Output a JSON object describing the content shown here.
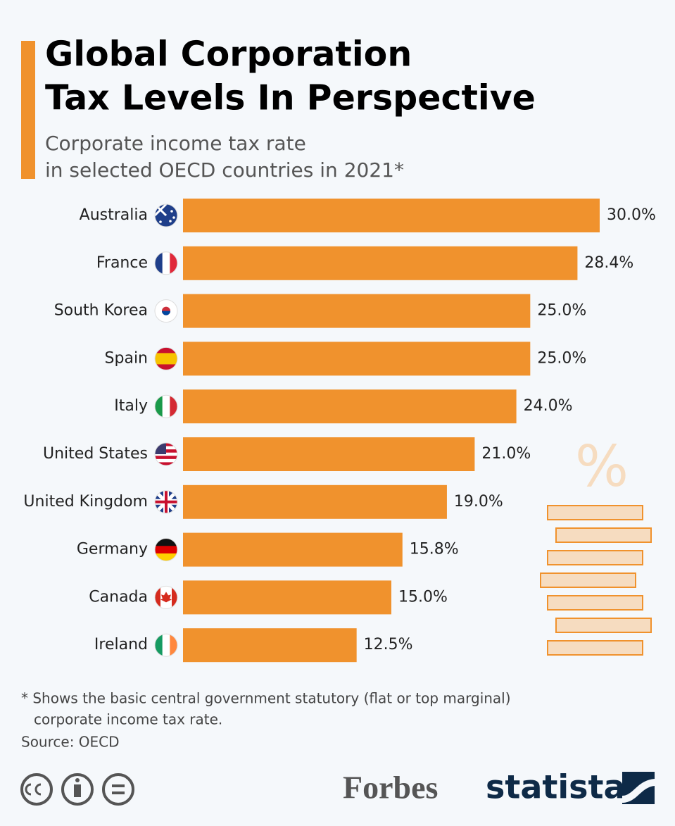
{
  "chart_data": {
    "type": "bar",
    "title": [
      "Global Corporation",
      "Tax Levels In Perspective"
    ],
    "subtitle": [
      "Corporate income tax rate",
      "in selected OECD countries in 2021*"
    ],
    "categories": [
      "Australia",
      "France",
      "South Korea",
      "Spain",
      "Italy",
      "United States",
      "United Kingdom",
      "Germany",
      "Canada",
      "Ireland"
    ],
    "values": [
      30.0,
      28.4,
      25.0,
      25.0,
      24.0,
      21.0,
      19.0,
      15.8,
      15.0,
      12.5
    ],
    "value_labels": [
      "30.0%",
      "28.4%",
      "25.0%",
      "25.0%",
      "24.0%",
      "21.0%",
      "19.0%",
      "15.8%",
      "15.0%",
      "12.5%"
    ],
    "color": "#f0922d",
    "xlim": [
      0,
      30
    ],
    "footnote": [
      "* Shows the basic central government statutory (flat or top marginal)",
      "corporate income tax rate."
    ],
    "source": "Source: OECD",
    "illustration_symbol": "%",
    "logos": [
      "Forbes",
      "statista"
    ]
  }
}
